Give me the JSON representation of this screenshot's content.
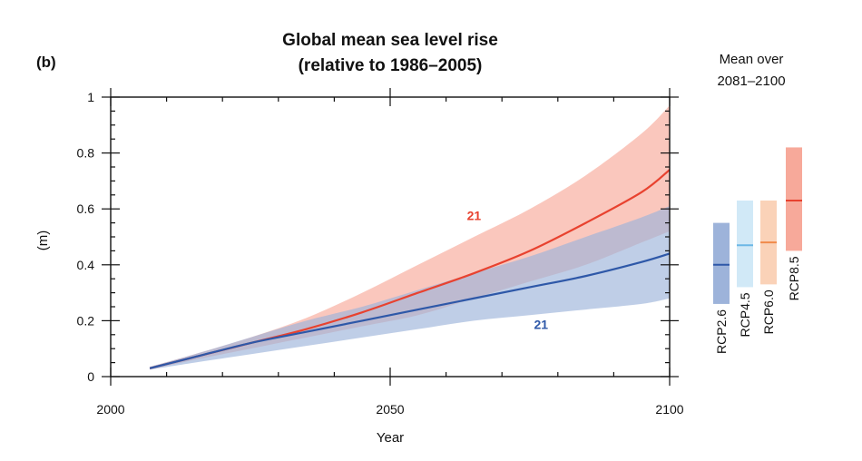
{
  "chart_data": {
    "type": "line",
    "panel_label": "(b)",
    "title": "Global mean sea level rise",
    "subtitle": "(relative to 1986–2005)",
    "ylabel": "(m)",
    "xlabel": "Year",
    "xlim": [
      2000,
      2100
    ],
    "ylim": [
      0,
      1
    ],
    "xticks": [
      "2000",
      "2050",
      "2100"
    ],
    "yticks": [
      "0",
      "0.2",
      "0.4",
      "0.6",
      "0.8",
      "1"
    ],
    "series": [
      {
        "color": "#e8422f",
        "band_color": "#f7a99a",
        "annotation": "21",
        "x": [
          2007,
          2015,
          2025,
          2035,
          2045,
          2055,
          2065,
          2075,
          2085,
          2095,
          2100
        ],
        "y": [
          0.03,
          0.07,
          0.12,
          0.17,
          0.23,
          0.3,
          0.37,
          0.45,
          0.55,
          0.66,
          0.74
        ],
        "upper": [
          0.035,
          0.08,
          0.14,
          0.21,
          0.3,
          0.4,
          0.5,
          0.6,
          0.72,
          0.87,
          0.97
        ],
        "lower": [
          0.025,
          0.06,
          0.1,
          0.14,
          0.18,
          0.22,
          0.28,
          0.34,
          0.4,
          0.48,
          0.52
        ]
      },
      {
        "color": "#2e58a8",
        "band_color": "#9db3da",
        "annotation": "21",
        "x": [
          2007,
          2015,
          2025,
          2035,
          2045,
          2055,
          2065,
          2075,
          2085,
          2095,
          2100
        ],
        "y": [
          0.03,
          0.07,
          0.12,
          0.16,
          0.2,
          0.24,
          0.28,
          0.32,
          0.36,
          0.41,
          0.44
        ],
        "upper": [
          0.035,
          0.08,
          0.14,
          0.2,
          0.25,
          0.31,
          0.37,
          0.43,
          0.5,
          0.57,
          0.61
        ],
        "lower": [
          0.025,
          0.05,
          0.08,
          0.11,
          0.14,
          0.17,
          0.2,
          0.22,
          0.24,
          0.26,
          0.28
        ]
      }
    ],
    "side_panel": {
      "title_lines": [
        "Mean over",
        "2081–2100"
      ],
      "bars": [
        {
          "label": "RCP2.6",
          "mean": 0.4,
          "low": 0.26,
          "high": 0.55,
          "color": "#2e58a8",
          "fill": "#9db3da"
        },
        {
          "label": "RCP4.5",
          "mean": 0.47,
          "low": 0.32,
          "high": 0.63,
          "color": "#6cb8e6",
          "fill": "#d1e9f7"
        },
        {
          "label": "RCP6.0",
          "mean": 0.48,
          "low": 0.33,
          "high": 0.63,
          "color": "#f08a4b",
          "fill": "#fad2b8"
        },
        {
          "label": "RCP8.5",
          "mean": 0.63,
          "low": 0.45,
          "high": 0.82,
          "color": "#e8422f",
          "fill": "#f7a99a"
        }
      ]
    }
  }
}
